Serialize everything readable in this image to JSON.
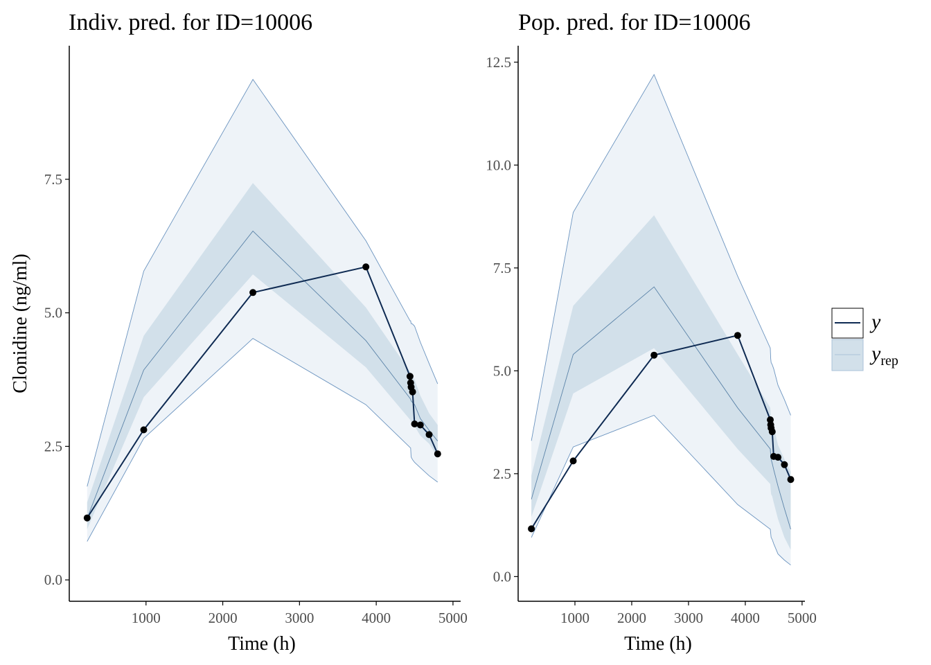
{
  "colors": {
    "outer_band": "#eef3f8",
    "outer_edge": "#6a93bf",
    "inner_band": "#d2e0ea",
    "inner_edge": "#a9c2d8",
    "median": "#5b83a8",
    "observed": "#0e2a52",
    "points": "#000000",
    "axis": "#000000"
  },
  "legend": {
    "y_label": "y",
    "yrep_label": "y",
    "yrep_subscript": "rep"
  },
  "chart_data": [
    {
      "type": "area",
      "title": "Indiv. pred. for ID=10006",
      "xlabel": "Time (h)",
      "ylabel": "Clonidine (ng/ml)",
      "xlim": [
        0,
        5100
      ],
      "ylim": [
        -0.4,
        10.0
      ],
      "x_ticks": [
        1000,
        2000,
        3000,
        4000,
        5000
      ],
      "y_ticks": [
        0.0,
        2.5,
        5.0,
        7.5
      ],
      "y_tick_labels": [
        "0.0",
        "2.5",
        "5.0",
        "7.5"
      ],
      "x_tick_labels": [
        "1000",
        "2000",
        "3000",
        "4000",
        "5000"
      ],
      "grid": false,
      "observed": {
        "name": "y",
        "x": [
          233,
          970,
          2393,
          3865,
          4440,
          4448,
          4455,
          4474,
          4500,
          4575,
          4689,
          4800
        ],
        "y": [
          1.16,
          2.81,
          5.38,
          5.86,
          3.81,
          3.69,
          3.61,
          3.52,
          2.92,
          2.9,
          2.72,
          2.36
        ]
      },
      "yrep": {
        "name": "y_rep",
        "x": [
          233,
          970,
          2393,
          3865,
          4440,
          4448,
          4455,
          4474,
          4500,
          4575,
          4689,
          4800
        ],
        "outer_upper": [
          1.75,
          5.78,
          9.37,
          6.35,
          4.85,
          4.85,
          4.8,
          4.79,
          4.75,
          4.45,
          4.05,
          3.67
        ],
        "inner_upper": [
          1.45,
          4.57,
          7.43,
          5.1,
          3.9,
          3.88,
          3.85,
          3.82,
          3.75,
          3.45,
          3.12,
          2.9
        ],
        "median": [
          1.15,
          3.93,
          6.53,
          4.48,
          3.4,
          3.38,
          3.35,
          3.32,
          3.28,
          3.02,
          2.8,
          2.6
        ],
        "inner_lower": [
          0.95,
          3.42,
          5.72,
          3.98,
          3.0,
          2.98,
          2.96,
          2.93,
          2.88,
          2.7,
          2.55,
          2.3
        ],
        "outer_lower": [
          0.72,
          2.65,
          4.52,
          3.28,
          2.48,
          2.47,
          2.3,
          2.25,
          2.2,
          2.1,
          1.95,
          1.83
        ]
      }
    },
    {
      "type": "area",
      "title": "Pop. pred. for ID=10006",
      "xlabel": "Time (h)",
      "ylabel": "",
      "xlim": [
        0,
        5050
      ],
      "ylim": [
        -0.6,
        12.9
      ],
      "x_ticks": [
        1000,
        2000,
        3000,
        4000,
        5000
      ],
      "y_ticks": [
        0.0,
        2.5,
        5.0,
        7.5,
        10.0,
        12.5
      ],
      "y_tick_labels": [
        "0.0",
        "2.5",
        "5.0",
        "7.5",
        "10.0",
        "12.5"
      ],
      "x_tick_labels": [
        "1000",
        "2000",
        "3000",
        "4000",
        "5000"
      ],
      "grid": false,
      "observed": {
        "name": "y",
        "x": [
          233,
          970,
          2393,
          3865,
          4440,
          4448,
          4455,
          4474,
          4500,
          4575,
          4689,
          4800
        ],
        "y": [
          1.16,
          2.81,
          5.38,
          5.86,
          3.81,
          3.69,
          3.61,
          3.52,
          2.92,
          2.9,
          2.72,
          2.36
        ]
      },
      "yrep": {
        "name": "y_rep",
        "x": [
          233,
          970,
          2393,
          3865,
          4440,
          4448,
          4455,
          4474,
          4500,
          4575,
          4689,
          4800
        ],
        "outer_upper": [
          3.3,
          8.85,
          12.2,
          7.3,
          5.55,
          5.3,
          5.2,
          5.15,
          5.05,
          4.65,
          4.3,
          3.92
        ],
        "inner_upper": [
          2.45,
          6.58,
          8.78,
          5.4,
          4.1,
          3.95,
          3.85,
          3.78,
          3.65,
          3.2,
          2.85,
          2.55
        ],
        "median": [
          1.88,
          5.4,
          7.04,
          4.1,
          3.1,
          2.95,
          2.85,
          2.75,
          2.6,
          2.2,
          1.65,
          1.15
        ],
        "inner_lower": [
          1.45,
          4.45,
          5.55,
          3.1,
          2.25,
          2.1,
          2.0,
          1.95,
          1.8,
          1.4,
          0.95,
          0.65
        ],
        "outer_lower": [
          0.95,
          3.15,
          3.92,
          1.75,
          1.15,
          1.05,
          0.95,
          0.9,
          0.8,
          0.55,
          0.4,
          0.28
        ]
      }
    }
  ]
}
